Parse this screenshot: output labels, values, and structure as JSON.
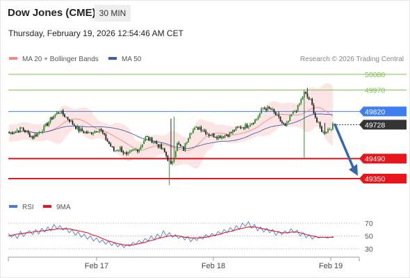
{
  "header": {
    "instrument": "Dow Jones (CME)",
    "timeframe": "30 MIN",
    "datetime": "Thursday, February 19, 2026 12:54:46 AM CET"
  },
  "legend": {
    "ma20_label": "MA 20 + Bollinger Bands",
    "ma50_label": "MA 50",
    "copyright": "Research © 2026 Trading Central"
  },
  "oscillator_legend": {
    "rsi_label": "RSI",
    "ma9_label": "9MA"
  },
  "colors": {
    "resistance": "#7cc24a",
    "pivot": "#3f7ef0",
    "support": "#e8151b",
    "last_price": "#333333",
    "bollinger_fill": "#fde2e2",
    "ma20": "#f08a8a",
    "ma50": "#3b5fa8",
    "candle_up": "#2e8b2e",
    "candle_down": "#222222",
    "rsi": "#4a78e0",
    "ma9": "#e8151b",
    "arrow": "#3866b0"
  },
  "chart_data": [
    {
      "type": "candlestick",
      "title": "Dow Jones (CME)",
      "ylim": [
        49300,
        50150
      ],
      "x_tick_labels": [
        "Feb 17",
        "Feb 18",
        "Feb 19"
      ],
      "levels": [
        {
          "label": "50080",
          "value": 50080,
          "kind": "resistance"
        },
        {
          "label": "49970",
          "value": 49970,
          "kind": "resistance"
        },
        {
          "label": "49820",
          "value": 49820,
          "kind": "pivot"
        },
        {
          "label": "49728",
          "value": 49728,
          "kind": "last"
        },
        {
          "label": "49490",
          "value": 49490,
          "kind": "support"
        },
        {
          "label": "49350",
          "value": 49350,
          "kind": "support"
        }
      ],
      "forecast": {
        "direction": "down",
        "from": 49728,
        "to": 49350
      },
      "series": [
        {
          "name": "MA 20 + Bollinger Bands",
          "style": "bollinger"
        },
        {
          "name": "MA 50",
          "style": "ma"
        }
      ]
    },
    {
      "type": "line",
      "ylim": [
        20,
        80
      ],
      "y_tick_labels": [
        "70",
        "50",
        "30"
      ],
      "series": [
        {
          "name": "RSI",
          "values": [
            54,
            48,
            52,
            46,
            57,
            49,
            55,
            58,
            52,
            60,
            53,
            62,
            56,
            64,
            58,
            68,
            61,
            66,
            59,
            63,
            55,
            60,
            51,
            56,
            48,
            53,
            45,
            50,
            42,
            47,
            40,
            44,
            37,
            42,
            35,
            40,
            33,
            38,
            32,
            36,
            34,
            40,
            37,
            43,
            39,
            46,
            42,
            50,
            44,
            53,
            47,
            58,
            50,
            55,
            48,
            52,
            46,
            50,
            44,
            49,
            41,
            47,
            43,
            49,
            45,
            52,
            48,
            54,
            50,
            57,
            53,
            60,
            55,
            63,
            58,
            66,
            60,
            70,
            65,
            72,
            62,
            68,
            58,
            64,
            56,
            62,
            55,
            60,
            51,
            57,
            52,
            58,
            54,
            61,
            55,
            59,
            50,
            55,
            47,
            52,
            45,
            50,
            47,
            48,
            48,
            47,
            48,
            49
          ]
        },
        {
          "name": "9MA",
          "values": [
            50,
            51,
            52,
            53,
            53,
            54,
            55,
            55,
            56,
            57,
            57,
            58,
            58,
            59,
            60,
            60,
            61,
            61,
            61,
            61,
            61,
            60,
            59,
            58,
            57,
            56,
            55,
            53,
            51,
            50,
            48,
            46,
            44,
            42,
            41,
            39,
            38,
            37,
            36,
            36,
            36,
            36,
            37,
            38,
            39,
            40,
            42,
            43,
            44,
            46,
            47,
            48,
            49,
            50,
            50,
            50,
            50,
            49,
            48,
            48,
            47,
            47,
            47,
            47,
            48,
            48,
            49,
            50,
            51,
            52,
            53,
            55,
            56,
            57,
            58,
            60,
            61,
            62,
            63,
            64,
            64,
            64,
            63,
            62,
            61,
            60,
            59,
            58,
            57,
            56,
            55,
            55,
            55,
            56,
            56,
            56,
            55,
            54,
            52,
            51,
            50,
            49,
            48,
            48,
            48,
            48,
            48,
            48
          ]
        }
      ]
    }
  ]
}
